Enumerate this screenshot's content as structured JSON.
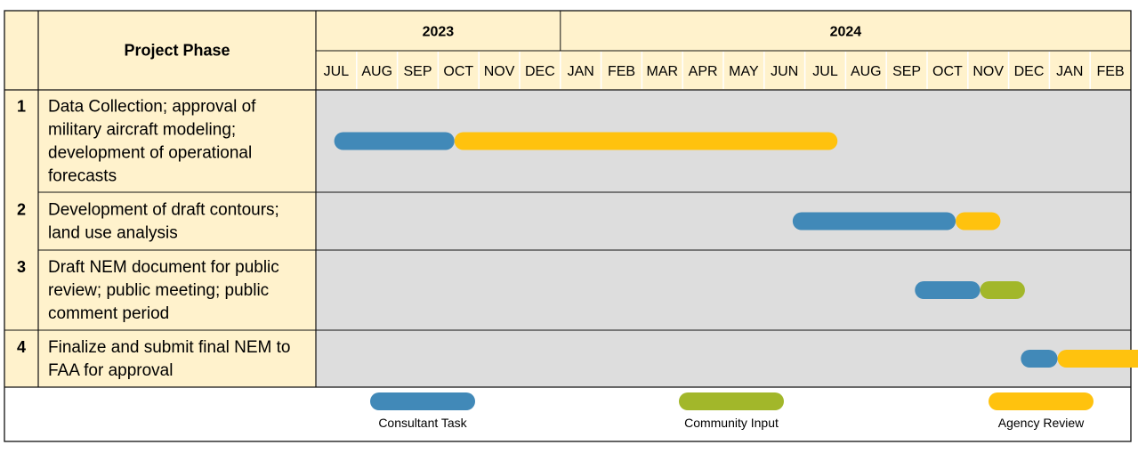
{
  "chart_data": {
    "type": "gantt",
    "header": {
      "phase_column": "Project Phase"
    },
    "years": [
      {
        "label": "2023",
        "span": 6
      },
      {
        "label": "2024",
        "span": 14
      }
    ],
    "months": [
      "JUL",
      "AUG",
      "SEP",
      "OCT",
      "NOV",
      "DEC",
      "JAN",
      "FEB",
      "MAR",
      "APR",
      "MAY",
      "JUN",
      "JUL",
      "AUG",
      "SEP",
      "OCT",
      "NOV",
      "DEC",
      "JAN",
      "FEB"
    ],
    "phases": [
      {
        "num": "1",
        "lines": [
          "Data Collection; approval of",
          "military aircraft modeling;",
          "development of operational",
          "forecasts"
        ]
      },
      {
        "num": "2",
        "lines": [
          "Development of draft contours;",
          "land use analysis"
        ]
      },
      {
        "num": "3",
        "lines": [
          "Draft NEM document for public",
          "review; public meeting; public",
          "comment period"
        ]
      },
      {
        "num": "4",
        "lines": [
          "Finalize and submit final NEM to",
          "FAA for approval"
        ]
      }
    ],
    "task_types": [
      {
        "key": "consultant",
        "name": "Consultant Task",
        "color": "#4189B8"
      },
      {
        "key": "community",
        "name": "Community Input",
        "color": "#A2B72A"
      },
      {
        "key": "agency",
        "name": "Agency Review",
        "color": "#FFC20E"
      }
    ],
    "bars": [
      {
        "phase": 0,
        "type": "consultant",
        "start": 0.45,
        "end": 3.4
      },
      {
        "phase": 0,
        "type": "agency",
        "start": 3.4,
        "end": 12.8
      },
      {
        "phase": 1,
        "type": "consultant",
        "start": 11.7,
        "end": 15.7
      },
      {
        "phase": 1,
        "type": "agency",
        "start": 15.7,
        "end": 16.8
      },
      {
        "phase": 2,
        "type": "consultant",
        "start": 14.7,
        "end": 16.3
      },
      {
        "phase": 2,
        "type": "community",
        "start": 16.3,
        "end": 17.4
      },
      {
        "phase": 3,
        "type": "consultant",
        "start": 17.3,
        "end": 18.2
      },
      {
        "phase": 3,
        "type": "agency",
        "start": 18.2,
        "end": 20.5
      }
    ]
  }
}
